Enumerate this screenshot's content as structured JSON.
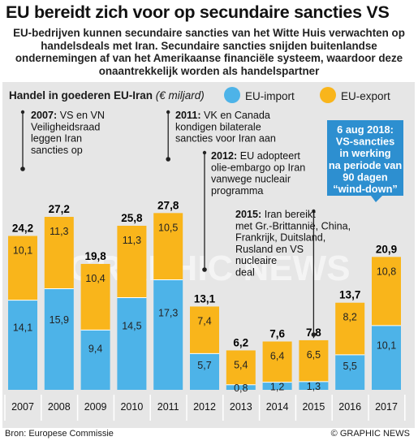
{
  "title": "EU bereidt zich voor op secundaire sancties VS",
  "subtitle": "EU-bedrijven kunnen secundaire sancties van het Witte Huis verwachten op handelsdeals met Iran. Secundaire sancties snijden buitenlandse ondernemingen af van het Amerikaanse financiële systeem, waardoor deze onaantrekkelijk worden als handelspartner",
  "legend": {
    "heading": "Handel in goederen EU-Iran",
    "unit": "(€ miljard)",
    "import_label": "EU-import",
    "export_label": "EU-export"
  },
  "colors": {
    "import": "#4db3e8",
    "export": "#f9b51b",
    "panel": "#e6e6e6",
    "highlight": "#2d8fd0"
  },
  "chart_data": {
    "type": "bar",
    "stacked": true,
    "categories": [
      "2007",
      "2008",
      "2009",
      "2010",
      "2011",
      "2012",
      "2013",
      "2014",
      "2015",
      "2016",
      "2017"
    ],
    "series": [
      {
        "name": "EU-import",
        "values": [
          14.1,
          15.9,
          9.4,
          14.5,
          17.3,
          5.7,
          0.8,
          1.2,
          1.3,
          5.5,
          10.1
        ]
      },
      {
        "name": "EU-export",
        "values": [
          10.1,
          11.3,
          10.4,
          11.3,
          10.5,
          7.4,
          5.4,
          6.4,
          6.5,
          8.2,
          10.8
        ]
      }
    ],
    "import_labels": [
      "14,1",
      "15,9",
      "9,4",
      "14,5",
      "17,3",
      "5,7",
      "0,8",
      "1,2",
      "1,3",
      "5,5",
      "10,1"
    ],
    "export_labels": [
      "10,1",
      "11,3",
      "10,4",
      "11,3",
      "10,5",
      "7,4",
      "5,4",
      "6,4",
      "6,5",
      "8,2",
      "10,8"
    ],
    "totals": [
      "24,2",
      "27,2",
      "19,8",
      "25,8",
      "27,8",
      "13,1",
      "6,2",
      "7,6",
      "7,8",
      "13,7",
      "20,9"
    ],
    "title": "Handel in goederen EU-Iran",
    "ylabel": "€ miljard",
    "ylim": [
      0,
      30
    ]
  },
  "annotations": [
    {
      "year": "2007",
      "lines": [
        "VS en VN",
        "Veiligheidsraad",
        "leggen Iran",
        "sancties op"
      ]
    },
    {
      "year": "2011",
      "lines": [
        "VK en Canada",
        "kondigen bilaterale",
        "sancties voor Iran aan"
      ]
    },
    {
      "year": "2012",
      "lines": [
        "EU adopteert",
        "olie-embargo op Iran",
        "vanwege nucleair",
        "programma"
      ]
    },
    {
      "year": "2015",
      "lines": [
        "Iran bereikt",
        "met Gr.-Brittannië, China,",
        "Frankrijk, Duitsland,",
        "Rusland en VS",
        "nucleaire",
        "deal"
      ]
    }
  ],
  "callout": {
    "lines": [
      "6 aug 2018:",
      "VS-sancties",
      "in werking",
      "na periode van",
      "90 dagen",
      "“wind-down”"
    ]
  },
  "watermark": "GRAPHIC NEWS",
  "source": "Bron: Europese Commissie",
  "credit": "© GRAPHIC NEWS"
}
